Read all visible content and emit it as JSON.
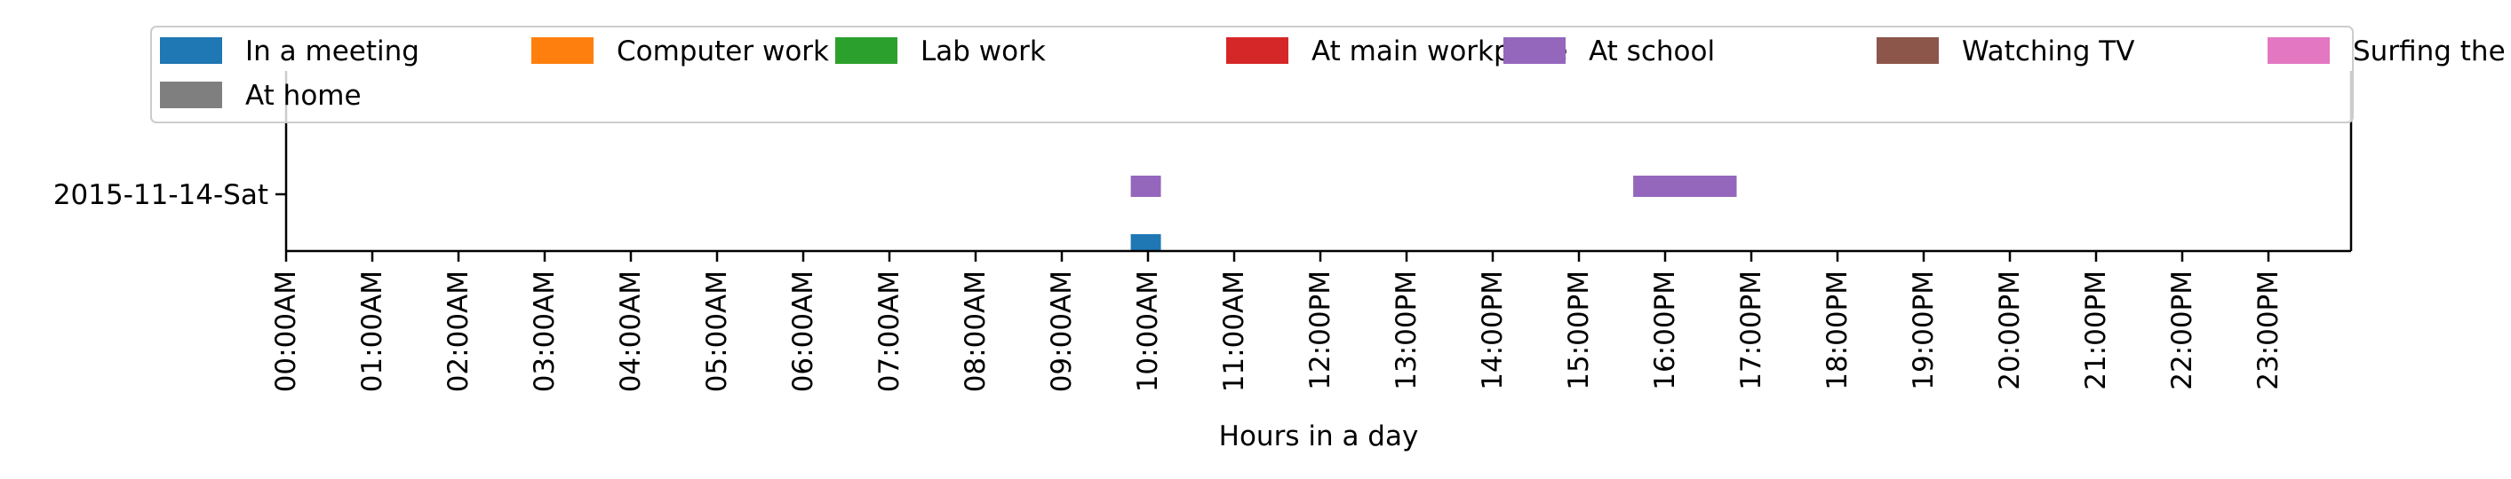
{
  "chart_data": {
    "type": "broken_barh",
    "title": "",
    "xlabel": "Hours in a day",
    "ylabel": "",
    "xlim": [
      0,
      24
    ],
    "grid": false,
    "legend_location": "upper",
    "legend": [
      {
        "name": "In a meeting",
        "color": "#1f77b4"
      },
      {
        "name": "Computer work",
        "color": "#ff7f0e"
      },
      {
        "name": "Lab work",
        "color": "#2ca02c"
      },
      {
        "name": "At main workplace",
        "color": "#d62728"
      },
      {
        "name": "At school",
        "color": "#9467bd"
      },
      {
        "name": "Watching TV",
        "color": "#8c564b"
      },
      {
        "name": "Surfing the internet",
        "color": "#e377c2"
      },
      {
        "name": "At home",
        "color": "#7f7f7f"
      }
    ],
    "rows": [
      {
        "label": "2015-11-14-Sat"
      }
    ],
    "x_ticks": [
      {
        "value": 0,
        "label": "00:00AM"
      },
      {
        "value": 1,
        "label": "01:00AM"
      },
      {
        "value": 2,
        "label": "02:00AM"
      },
      {
        "value": 3,
        "label": "03:00AM"
      },
      {
        "value": 4,
        "label": "04:00AM"
      },
      {
        "value": 5,
        "label": "05:00AM"
      },
      {
        "value": 6,
        "label": "06:00AM"
      },
      {
        "value": 7,
        "label": "07:00AM"
      },
      {
        "value": 8,
        "label": "08:00AM"
      },
      {
        "value": 9,
        "label": "09:00AM"
      },
      {
        "value": 10,
        "label": "10:00AM"
      },
      {
        "value": 11,
        "label": "11:00AM"
      },
      {
        "value": 12,
        "label": "12:00PM"
      },
      {
        "value": 13,
        "label": "13:00PM"
      },
      {
        "value": 14,
        "label": "14:00PM"
      },
      {
        "value": 15,
        "label": "15:00PM"
      },
      {
        "value": 16,
        "label": "16:00PM"
      },
      {
        "value": 17,
        "label": "17:00PM"
      },
      {
        "value": 18,
        "label": "18:00PM"
      },
      {
        "value": 19,
        "label": "19:00PM"
      },
      {
        "value": 20,
        "label": "20:00PM"
      },
      {
        "value": 21,
        "label": "21:00PM"
      },
      {
        "value": 22,
        "label": "22:00PM"
      },
      {
        "value": 23,
        "label": "23:00PM"
      }
    ],
    "segments": [
      {
        "row": 0,
        "category": "At school",
        "start": 9.8,
        "end": 10.15,
        "lane": 1
      },
      {
        "row": 0,
        "category": "At school",
        "start": 15.63,
        "end": 16.83,
        "lane": 1
      },
      {
        "row": 0,
        "category": "In a meeting",
        "start": 9.8,
        "end": 10.15,
        "lane": 0
      }
    ]
  }
}
